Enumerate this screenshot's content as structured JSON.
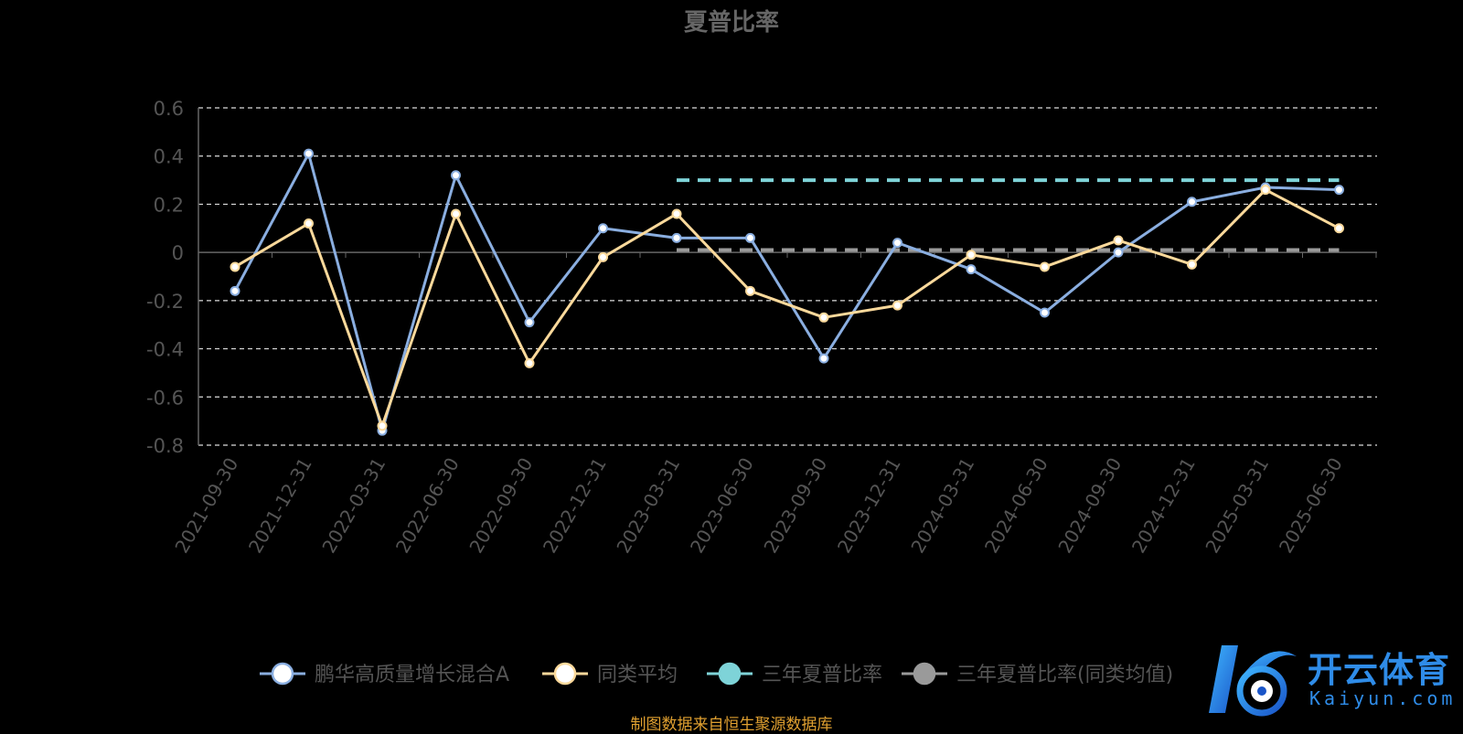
{
  "chart_data": {
    "type": "line",
    "title": "夏普比率",
    "categories": [
      "2021-09-30",
      "2021-12-31",
      "2022-03-31",
      "2022-06-30",
      "2022-09-30",
      "2022-12-31",
      "2023-03-31",
      "2023-06-30",
      "2023-09-30",
      "2023-12-31",
      "2024-03-31",
      "2024-06-30",
      "2024-09-30",
      "2024-12-31",
      "2025-03-31",
      "2025-06-30"
    ],
    "ylim": [
      -0.8,
      0.6
    ],
    "yticks": [
      0.6,
      0.4,
      0.2,
      0,
      -0.2,
      -0.4,
      -0.6,
      -0.8
    ],
    "ytick_labels": [
      "0.6",
      "0.4",
      "0.2",
      "0",
      "-0.2",
      "-0.4",
      "-0.6",
      "-0.8"
    ],
    "grid": true,
    "legend_position": "bottom",
    "series": [
      {
        "name": "鹏华高质量增长混合A",
        "color": "#8aaee0",
        "marker_fill": "#ffffff",
        "values": [
          -0.16,
          0.41,
          -0.74,
          0.32,
          -0.29,
          0.1,
          0.06,
          0.06,
          -0.44,
          0.04,
          -0.07,
          -0.25,
          0.0,
          0.21,
          0.27,
          0.26
        ]
      },
      {
        "name": "同类平均",
        "color": "#fbd99b",
        "marker_fill": "#ffffff",
        "values": [
          -0.06,
          0.12,
          -0.72,
          0.16,
          -0.46,
          -0.02,
          0.16,
          -0.16,
          -0.27,
          -0.22,
          -0.01,
          -0.06,
          0.05,
          -0.05,
          0.26,
          0.1
        ]
      },
      {
        "name": "三年夏普比率",
        "color": "#7ed3d8",
        "marker_fill": "#7ed3d8",
        "dashed": true,
        "x_start": "2023-03-31",
        "x_end": "2025-06-30",
        "value": 0.3
      },
      {
        "name": "三年夏普比率(同类均值)",
        "color": "#9a9a9a",
        "marker_fill": "#9a9a9a",
        "dashed": true,
        "x_start": "2023-03-31",
        "x_end": "2025-06-30",
        "value": 0.01
      }
    ]
  },
  "source_note": "制图数据来自恒生聚源数据库",
  "watermark": {
    "cn": "开云体育",
    "en": "Kaiyun.com"
  }
}
